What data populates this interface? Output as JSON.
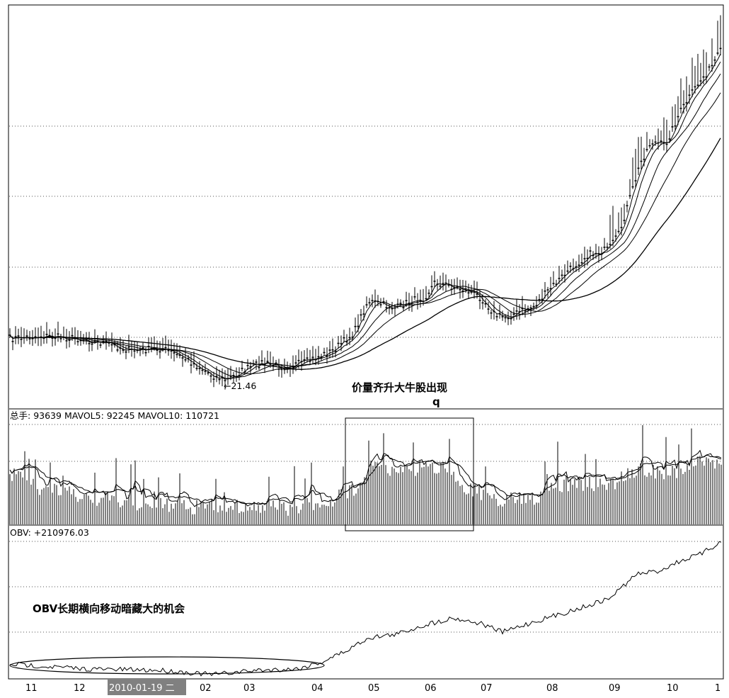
{
  "chart_data": [
    {
      "type": "candlestick",
      "panel": "price",
      "moving_averages": [
        "MA1",
        "MA2",
        "MA3",
        "MA4",
        "MA5"
      ],
      "annotations": {
        "low_marker": "21.46",
        "headline": "价量齐升大牛股出现",
        "sub_mark": "q"
      },
      "grid": true
    },
    {
      "type": "bar",
      "panel": "volume",
      "readout": {
        "total_label": "总手",
        "total_value": "93639",
        "mavol5_label": "MAVOL5",
        "mavol5_value": "92245",
        "mavol10_label": "MAVOL10",
        "mavol10_value": "110721"
      },
      "highlight_box": "05–06",
      "grid": true
    },
    {
      "type": "line",
      "panel": "obv",
      "readout": {
        "label": "OBV",
        "value": "+210976.03"
      },
      "annotation": "OBV长期横向移动暗藏大的机会",
      "grid": true
    }
  ],
  "xaxis": {
    "months": [
      "11",
      "12",
      "2010-01-19 二",
      "02",
      "03",
      "04",
      "05",
      "06",
      "07",
      "08",
      "09",
      "10",
      "1"
    ],
    "selected": "2010-01-19 二"
  },
  "colors": {
    "line": "#000000",
    "grid": "#555555",
    "cursor_bg": "#808080",
    "cursor_text": "#ffffff"
  }
}
